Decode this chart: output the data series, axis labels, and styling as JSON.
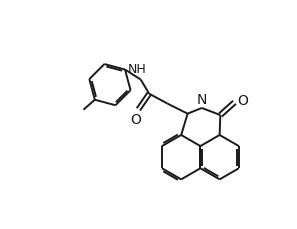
{
  "bg_color": "#ffffff",
  "line_color": "#1a1a1a",
  "line_width": 1.4,
  "font_size": 9,
  "fig_width": 2.97,
  "fig_height": 2.29,
  "dpi": 100,
  "xlim": [
    0,
    10
  ],
  "ylim": [
    -4,
    4
  ]
}
